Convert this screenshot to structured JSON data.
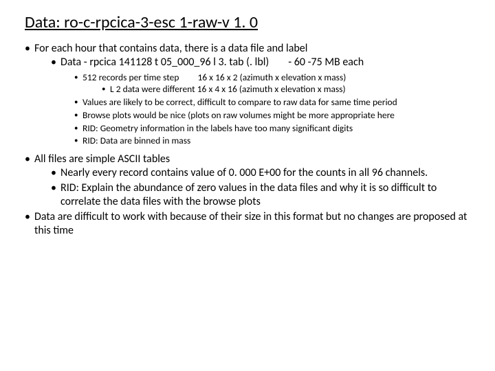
{
  "title": "Data: ro-c-rpcica-3-esc 1-raw-v 1. 0",
  "b1": {
    "t": "For each hour that contains data, there is a data file and label",
    "sub": {
      "line": "Data - rpcica 141128 t 05_000_96 l 3. tab (. lbl)",
      "tail": "- 60 -75 MB each"
    },
    "l3": {
      "a": "512 records per time step  16 x 16 x 2 (azimuth x elevation x mass)",
      "a_sub": "L 2 data were different  16 x 4 x 16 (azimuth x elevation x mass)",
      "b": "Values are likely to be correct, difficult to compare to raw data for same time period",
      "c": "Browse plots would be nice (plots on raw volumes might be more appropriate here",
      "d": "RID: Geometry information in the labels have too many significant digits",
      "e": "RID: Data are binned in mass"
    }
  },
  "b2": {
    "t": "All files are simple ASCII tables",
    "s1": "Nearly every record contains value of  0. 000 E+00 for the counts in all 96 channels.",
    "s2": "RID: Explain the abundance of zero values in the data files and why it is so difficult to correlate the data files with the browse plots"
  },
  "b3": "Data are difficult to work with because of their size in this format but no changes are proposed at this time",
  "colors": {
    "text": "#000000",
    "bg": "#ffffff"
  },
  "font": {
    "title_pt": 24,
    "body_pt": 16,
    "small_pt": 13.5,
    "family": "Calibri"
  }
}
